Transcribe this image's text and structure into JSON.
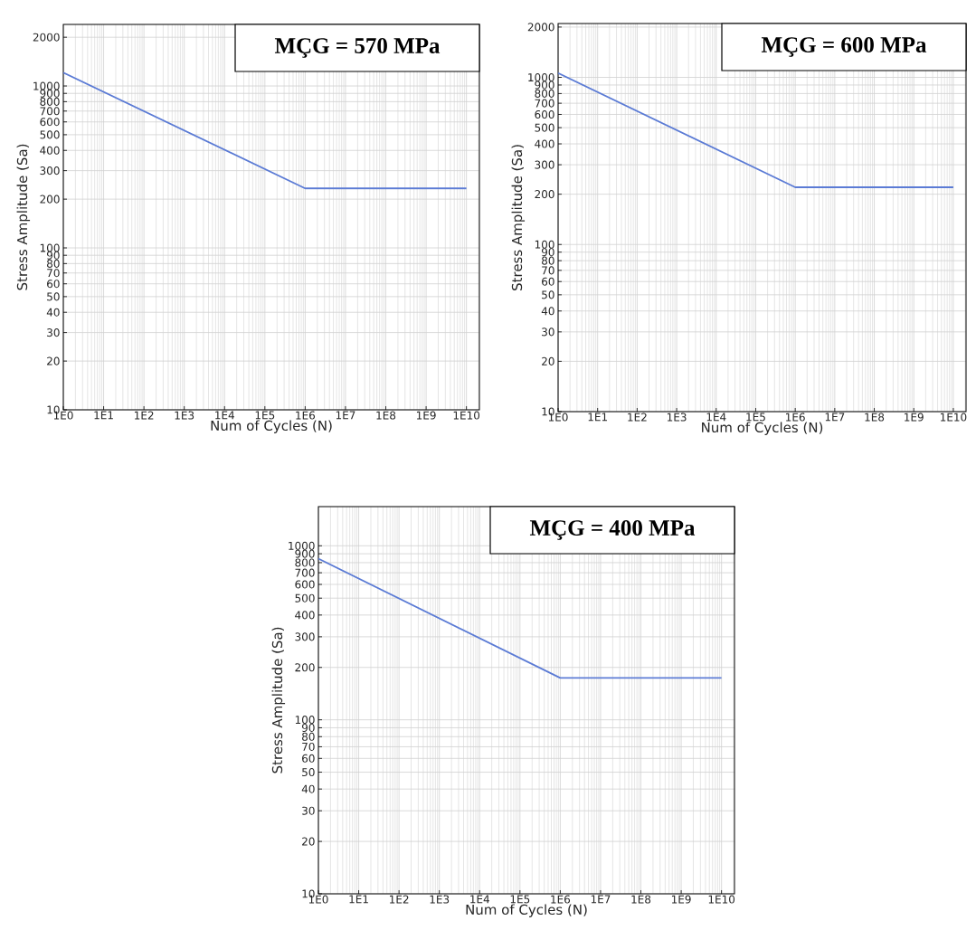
{
  "chart_data": [
    {
      "type": "line",
      "title": "MÇG = 570 MPa",
      "xlabel": "Num of Cycles (N)",
      "ylabel": "Stress Amplitude (Sa)",
      "log": "xy",
      "grid": true,
      "x": [
        1,
        1000000,
        10000000000
      ],
      "series": [
        {
          "color": "#5b7bd5",
          "values": [
            1210,
            233,
            233
          ]
        }
      ],
      "xlim": [
        1,
        21000000000
      ],
      "ylim": [
        10,
        2400
      ],
      "xticks": [
        {
          "value": 1,
          "label": "1E0"
        },
        {
          "value": 10,
          "label": "1E1"
        },
        {
          "value": 100,
          "label": "1E2"
        },
        {
          "value": 1000,
          "label": "1E3"
        },
        {
          "value": 10000,
          "label": "1E4"
        },
        {
          "value": 100000,
          "label": "1E5"
        },
        {
          "value": 1000000,
          "label": "1E6"
        },
        {
          "value": 10000000,
          "label": "1E7"
        },
        {
          "value": 100000000,
          "label": "1E8"
        },
        {
          "value": 1000000000,
          "label": "1E9"
        },
        {
          "value": 10000000000,
          "label": "1E10"
        }
      ],
      "yticks": [
        10,
        20,
        30,
        40,
        50,
        60,
        70,
        80,
        90,
        100,
        200,
        300,
        400,
        500,
        600,
        700,
        800,
        900,
        1000,
        2000
      ]
    },
    {
      "type": "line",
      "title": "MÇG = 600 MPa",
      "xlabel": "Num of Cycles (N)",
      "ylabel": "Stress Amplitude (Sa)",
      "log": "xy",
      "grid": true,
      "x": [
        1,
        1000000,
        10000000000
      ],
      "series": [
        {
          "color": "#5b7bd5",
          "values": [
            1060,
            220,
            220
          ]
        }
      ],
      "xlim": [
        1,
        21000000000
      ],
      "ylim": [
        10,
        2100
      ],
      "xticks": [
        {
          "value": 1,
          "label": "1E0"
        },
        {
          "value": 10,
          "label": "1E1"
        },
        {
          "value": 100,
          "label": "1E2"
        },
        {
          "value": 1000,
          "label": "1E3"
        },
        {
          "value": 10000,
          "label": "1E4"
        },
        {
          "value": 100000,
          "label": "1E5"
        },
        {
          "value": 1000000,
          "label": "1E6"
        },
        {
          "value": 10000000,
          "label": "1E7"
        },
        {
          "value": 100000000,
          "label": "1E8"
        },
        {
          "value": 1000000000,
          "label": "1E9"
        },
        {
          "value": 10000000000,
          "label": "1E10"
        }
      ],
      "yticks": [
        10,
        20,
        30,
        40,
        50,
        60,
        70,
        80,
        90,
        100,
        200,
        300,
        400,
        500,
        600,
        700,
        800,
        900,
        1000,
        2000
      ]
    },
    {
      "type": "line",
      "title": "MÇG = 400 MPa",
      "xlabel": "Num of Cycles (N)",
      "ylabel": "Stress Amplitude (Sa)",
      "log": "xy",
      "grid": true,
      "x": [
        1,
        1000000,
        10000000000
      ],
      "series": [
        {
          "color": "#5b7bd5",
          "values": [
            844,
            174,
            174
          ]
        }
      ],
      "xlim": [
        1,
        21000000000
      ],
      "ylim": [
        10,
        1680
      ],
      "xticks": [
        {
          "value": 1,
          "label": "1E0"
        },
        {
          "value": 10,
          "label": "1E1"
        },
        {
          "value": 100,
          "label": "1E2"
        },
        {
          "value": 1000,
          "label": "1E3"
        },
        {
          "value": 10000,
          "label": "1E4"
        },
        {
          "value": 100000,
          "label": "1E5"
        },
        {
          "value": 1000000,
          "label": "1E6"
        },
        {
          "value": 10000000,
          "label": "1E7"
        },
        {
          "value": 100000000,
          "label": "1E8"
        },
        {
          "value": 1000000000,
          "label": "1E9"
        },
        {
          "value": 10000000000,
          "label": "1E10"
        }
      ],
      "yticks": [
        10,
        20,
        30,
        40,
        50,
        60,
        70,
        80,
        90,
        100,
        200,
        300,
        400,
        500,
        600,
        700,
        800,
        900,
        1000
      ]
    }
  ]
}
